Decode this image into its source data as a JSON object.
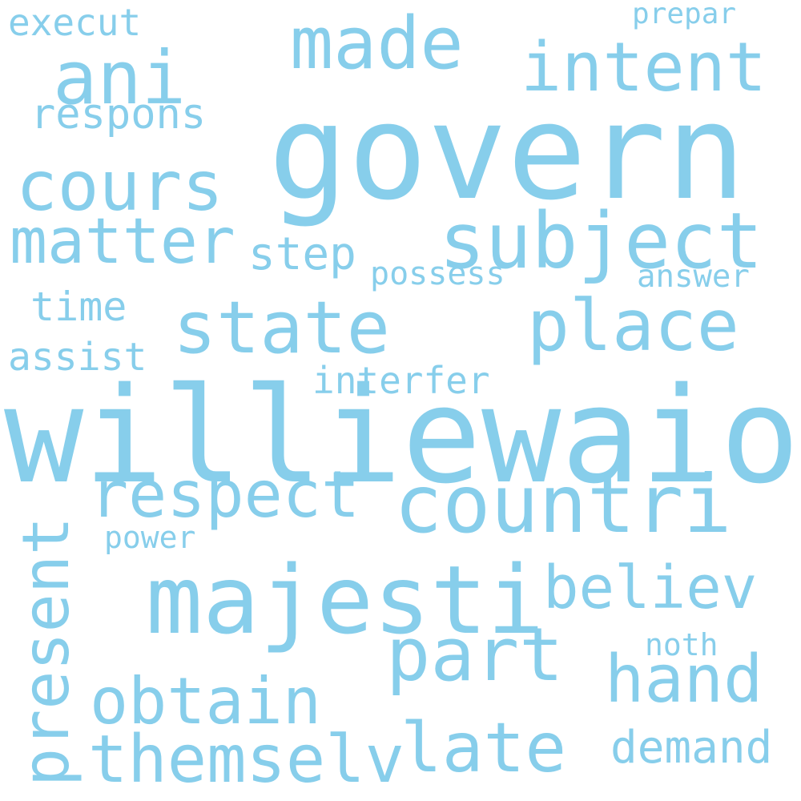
{
  "word_color": "#87CEEB",
  "background": "#ffffff",
  "words": {
    "govern": "govern",
    "williewaiola": "williewaiola",
    "majesti": "majesti",
    "countri": "countri",
    "subject": "subject",
    "intent": "intent",
    "made": "made",
    "ani": "ani",
    "cours": "cours",
    "matter": "matter",
    "state": "state",
    "place": "place",
    "respect": "respect",
    "believ": "believ",
    "part": "part",
    "hand": "hand",
    "obtain": "obtain",
    "themselv": "themselv",
    "late": "late",
    "demand": "demand",
    "present": "present",
    "step": "step",
    "respons": "respons",
    "execut": "execut",
    "prepar": "prepar",
    "possess": "possess",
    "answer": "answer",
    "time": "time",
    "assist": "assist",
    "interfer": "interfer",
    "power": "power",
    "noth": "noth"
  }
}
